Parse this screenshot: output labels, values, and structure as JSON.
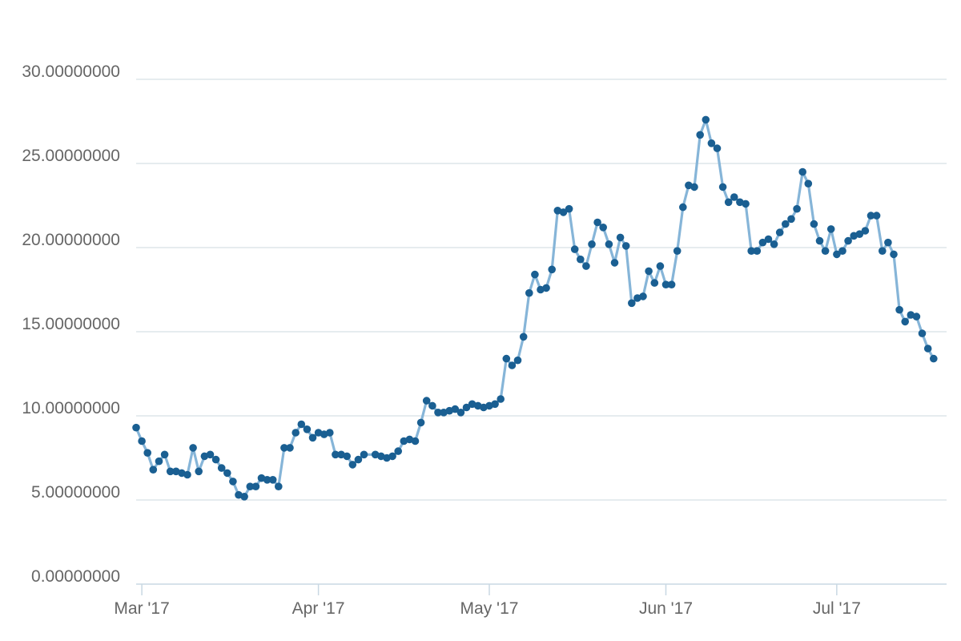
{
  "chart_data": {
    "type": "line",
    "title": "",
    "xlabel": "",
    "ylabel": "",
    "ylim": [
      0,
      30
    ],
    "y_ticks": [
      "0.00000000",
      "5.00000000",
      "10.00000000",
      "15.00000000",
      "20.00000000",
      "25.00000000",
      "30.00000000"
    ],
    "x_ticks": [
      "Mar '17",
      "Apr '17",
      "May '17",
      "Jun '17",
      "Jul '17"
    ],
    "x_range": [
      "2017-02-28",
      "2017-07-20"
    ],
    "grid": true,
    "line_color": "#86b5d8",
    "marker_color": "#1a5f92",
    "grid_color": "#dde5ea",
    "axis_color": "#c9d8e3",
    "series": [
      {
        "values": [
          [
            "2017-02-28",
            9.3
          ],
          [
            "2017-03-01",
            8.5
          ],
          [
            "2017-03-02",
            7.8
          ],
          [
            "2017-03-03",
            6.8
          ],
          [
            "2017-03-04",
            7.3
          ],
          [
            "2017-03-05",
            7.7
          ],
          [
            "2017-03-06",
            6.7
          ],
          [
            "2017-03-07",
            6.7
          ],
          [
            "2017-03-08",
            6.6
          ],
          [
            "2017-03-09",
            6.5
          ],
          [
            "2017-03-10",
            8.1
          ],
          [
            "2017-03-11",
            6.7
          ],
          [
            "2017-03-12",
            7.6
          ],
          [
            "2017-03-13",
            7.7
          ],
          [
            "2017-03-14",
            7.4
          ],
          [
            "2017-03-15",
            6.9
          ],
          [
            "2017-03-16",
            6.6
          ],
          [
            "2017-03-17",
            6.1
          ],
          [
            "2017-03-18",
            5.3
          ],
          [
            "2017-03-19",
            5.2
          ],
          [
            "2017-03-20",
            5.8
          ],
          [
            "2017-03-21",
            5.8
          ],
          [
            "2017-03-22",
            6.3
          ],
          [
            "2017-03-23",
            6.2
          ],
          [
            "2017-03-24",
            6.2
          ],
          [
            "2017-03-25",
            5.8
          ],
          [
            "2017-03-26",
            8.1
          ],
          [
            "2017-03-27",
            8.1
          ],
          [
            "2017-03-28",
            9.0
          ],
          [
            "2017-03-29",
            9.5
          ],
          [
            "2017-03-30",
            9.2
          ],
          [
            "2017-03-31",
            8.7
          ],
          [
            "2017-04-01",
            9.0
          ],
          [
            "2017-04-02",
            8.9
          ],
          [
            "2017-04-03",
            9.0
          ],
          [
            "2017-04-04",
            7.7
          ],
          [
            "2017-04-05",
            7.7
          ],
          [
            "2017-04-06",
            7.6
          ],
          [
            "2017-04-07",
            7.1
          ],
          [
            "2017-04-08",
            7.4
          ],
          [
            "2017-04-09",
            7.7
          ],
          [
            "2017-04-11",
            7.7
          ],
          [
            "2017-04-12",
            7.6
          ],
          [
            "2017-04-13",
            7.5
          ],
          [
            "2017-04-14",
            7.6
          ],
          [
            "2017-04-15",
            7.9
          ],
          [
            "2017-04-16",
            8.5
          ],
          [
            "2017-04-17",
            8.6
          ],
          [
            "2017-04-18",
            8.5
          ],
          [
            "2017-04-19",
            9.6
          ],
          [
            "2017-04-20",
            10.9
          ],
          [
            "2017-04-21",
            10.6
          ],
          [
            "2017-04-22",
            10.2
          ],
          [
            "2017-04-23",
            10.2
          ],
          [
            "2017-04-24",
            10.3
          ],
          [
            "2017-04-25",
            10.4
          ],
          [
            "2017-04-26",
            10.2
          ],
          [
            "2017-04-27",
            10.5
          ],
          [
            "2017-04-28",
            10.7
          ],
          [
            "2017-04-29",
            10.6
          ],
          [
            "2017-04-30",
            10.5
          ],
          [
            "2017-05-01",
            10.6
          ],
          [
            "2017-05-02",
            10.7
          ],
          [
            "2017-05-03",
            11.0
          ],
          [
            "2017-05-04",
            13.4
          ],
          [
            "2017-05-05",
            13.0
          ],
          [
            "2017-05-06",
            13.3
          ],
          [
            "2017-05-07",
            14.7
          ],
          [
            "2017-05-08",
            17.3
          ],
          [
            "2017-05-09",
            18.4
          ],
          [
            "2017-05-10",
            17.5
          ],
          [
            "2017-05-11",
            17.6
          ],
          [
            "2017-05-12",
            18.7
          ],
          [
            "2017-05-13",
            22.2
          ],
          [
            "2017-05-14",
            22.1
          ],
          [
            "2017-05-15",
            22.3
          ],
          [
            "2017-05-16",
            19.9
          ],
          [
            "2017-05-17",
            19.3
          ],
          [
            "2017-05-18",
            18.9
          ],
          [
            "2017-05-19",
            20.2
          ],
          [
            "2017-05-20",
            21.5
          ],
          [
            "2017-05-21",
            21.2
          ],
          [
            "2017-05-22",
            20.2
          ],
          [
            "2017-05-23",
            19.1
          ],
          [
            "2017-05-24",
            20.6
          ],
          [
            "2017-05-25",
            20.1
          ],
          [
            "2017-05-26",
            16.7
          ],
          [
            "2017-05-27",
            17.0
          ],
          [
            "2017-05-28",
            17.1
          ],
          [
            "2017-05-29",
            18.6
          ],
          [
            "2017-05-30",
            17.9
          ],
          [
            "2017-05-31",
            18.9
          ],
          [
            "2017-06-01",
            17.8
          ],
          [
            "2017-06-02",
            17.8
          ],
          [
            "2017-06-03",
            19.8
          ],
          [
            "2017-06-04",
            22.4
          ],
          [
            "2017-06-05",
            23.7
          ],
          [
            "2017-06-06",
            23.6
          ],
          [
            "2017-06-07",
            26.7
          ],
          [
            "2017-06-08",
            27.6
          ],
          [
            "2017-06-09",
            26.2
          ],
          [
            "2017-06-10",
            25.9
          ],
          [
            "2017-06-11",
            23.6
          ],
          [
            "2017-06-12",
            22.7
          ],
          [
            "2017-06-13",
            23.0
          ],
          [
            "2017-06-14",
            22.7
          ],
          [
            "2017-06-15",
            22.6
          ],
          [
            "2017-06-16",
            19.8
          ],
          [
            "2017-06-17",
            19.8
          ],
          [
            "2017-06-18",
            20.3
          ],
          [
            "2017-06-19",
            20.5
          ],
          [
            "2017-06-20",
            20.2
          ],
          [
            "2017-06-21",
            20.9
          ],
          [
            "2017-06-22",
            21.4
          ],
          [
            "2017-06-23",
            21.7
          ],
          [
            "2017-06-24",
            22.3
          ],
          [
            "2017-06-25",
            24.5
          ],
          [
            "2017-06-26",
            23.8
          ],
          [
            "2017-06-27",
            21.4
          ],
          [
            "2017-06-28",
            20.4
          ],
          [
            "2017-06-29",
            19.8
          ],
          [
            "2017-06-30",
            21.1
          ],
          [
            "2017-07-01",
            19.6
          ],
          [
            "2017-07-02",
            19.8
          ],
          [
            "2017-07-03",
            20.4
          ],
          [
            "2017-07-04",
            20.7
          ],
          [
            "2017-07-05",
            20.8
          ],
          [
            "2017-07-06",
            21.0
          ],
          [
            "2017-07-07",
            21.9
          ],
          [
            "2017-07-08",
            21.9
          ],
          [
            "2017-07-09",
            19.8
          ],
          [
            "2017-07-10",
            20.3
          ],
          [
            "2017-07-11",
            19.6
          ],
          [
            "2017-07-12",
            16.3
          ],
          [
            "2017-07-13",
            15.6
          ],
          [
            "2017-07-14",
            16.0
          ],
          [
            "2017-07-15",
            15.9
          ],
          [
            "2017-07-16",
            14.9
          ],
          [
            "2017-07-17",
            14.0
          ],
          [
            "2017-07-18",
            13.4
          ]
        ]
      }
    ]
  }
}
